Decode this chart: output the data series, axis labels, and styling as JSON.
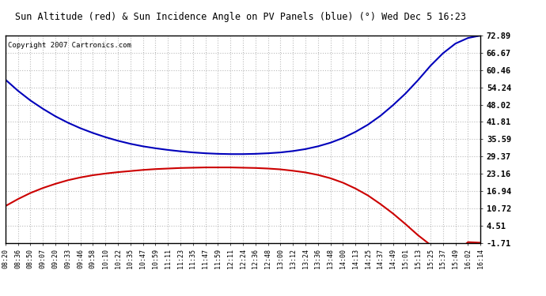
{
  "title": "Sun Altitude (red) & Sun Incidence Angle on PV Panels (blue) (°) Wed Dec 5 16:23",
  "copyright_text": "Copyright 2007 Cartronics.com",
  "background_color": "#ffffff",
  "plot_bg_color": "#ffffff",
  "grid_color": "#bbbbbb",
  "yticks": [
    72.89,
    66.67,
    60.46,
    54.24,
    48.02,
    41.81,
    35.59,
    29.37,
    23.16,
    16.94,
    10.72,
    4.51,
    -1.71
  ],
  "ymin": -1.71,
  "ymax": 72.89,
  "xtick_labels": [
    "08:20",
    "08:36",
    "08:50",
    "09:07",
    "09:20",
    "09:33",
    "09:46",
    "09:58",
    "10:10",
    "10:22",
    "10:35",
    "10:47",
    "10:59",
    "11:11",
    "11:23",
    "11:35",
    "11:47",
    "11:59",
    "12:11",
    "12:24",
    "12:36",
    "12:48",
    "13:00",
    "13:12",
    "13:24",
    "13:36",
    "13:48",
    "14:00",
    "14:13",
    "14:25",
    "14:37",
    "14:49",
    "15:01",
    "15:13",
    "15:25",
    "15:37",
    "15:49",
    "16:02",
    "16:14"
  ],
  "blue_line": {
    "color": "#0000bb",
    "values": [
      57.0,
      53.0,
      49.5,
      46.5,
      43.8,
      41.5,
      39.5,
      37.8,
      36.3,
      35.0,
      33.9,
      33.0,
      32.3,
      31.7,
      31.2,
      30.8,
      30.5,
      30.3,
      30.2,
      30.2,
      30.3,
      30.5,
      30.8,
      31.3,
      32.0,
      33.0,
      34.3,
      36.0,
      38.2,
      40.8,
      44.0,
      47.8,
      52.0,
      56.8,
      62.0,
      66.5,
      70.0,
      72.0,
      72.89
    ]
  },
  "red_line": {
    "color": "#cc0000",
    "values": [
      11.5,
      14.0,
      16.2,
      18.0,
      19.5,
      20.8,
      21.8,
      22.6,
      23.2,
      23.7,
      24.1,
      24.5,
      24.8,
      25.0,
      25.2,
      25.3,
      25.4,
      25.4,
      25.4,
      25.3,
      25.2,
      25.0,
      24.7,
      24.2,
      23.6,
      22.7,
      21.5,
      19.9,
      17.8,
      15.3,
      12.2,
      8.8,
      5.0,
      1.0,
      -2.5,
      -4.5,
      -5.5,
      -1.5,
      -1.71
    ]
  }
}
